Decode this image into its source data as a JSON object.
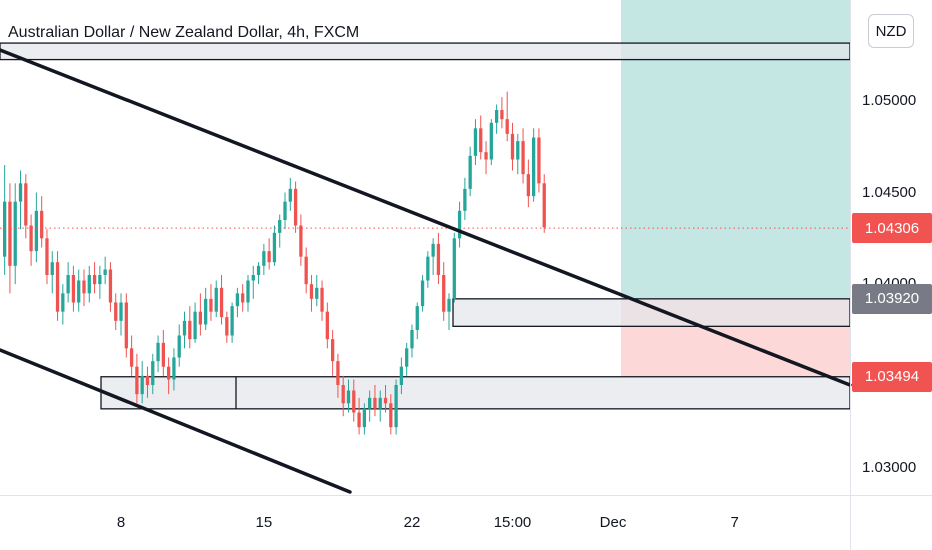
{
  "header": {
    "title": "Australian Dollar / New Zealand Dollar, 4h, FXCM",
    "currency": "NZD"
  },
  "chart_data": {
    "type": "candlestick",
    "ylim": [
      1.0285,
      1.0555
    ],
    "y_ticks": [
      {
        "value": 1.05,
        "label": "1.05000"
      },
      {
        "value": 1.045,
        "label": "1.04500"
      },
      {
        "value": 1.04,
        "label": "1.04000"
      },
      {
        "value": 1.03,
        "label": "1.03000"
      }
    ],
    "x_ticks": [
      {
        "bar": 22,
        "label": "8"
      },
      {
        "bar": 49,
        "label": "15"
      },
      {
        "bar": 77,
        "label": "22"
      },
      {
        "bar": 96,
        "label": "15:00"
      },
      {
        "bar": 115,
        "label": "Dec"
      },
      {
        "bar": 138,
        "label": "7"
      }
    ],
    "price_tags": [
      {
        "value": 1.04306,
        "label": "1.04306",
        "color": "#f05350"
      },
      {
        "value": 1.0392,
        "label": "1.03920",
        "color": "#787b86"
      },
      {
        "value": 1.03494,
        "label": "1.03494",
        "color": "#f05350"
      }
    ],
    "current_price": 1.04306,
    "colors": {
      "up": "#26a69a",
      "down": "#ef5350",
      "target": "#b2dfdb",
      "stop": "#fcd5d4",
      "zone": "#e4e6eb"
    },
    "candles": [
      [
        1.0415,
        1.0465,
        1.0405,
        1.0445
      ],
      [
        1.0445,
        1.0455,
        1.0395,
        1.041
      ],
      [
        1.041,
        1.0455,
        1.04,
        1.0445
      ],
      [
        1.0445,
        1.0462,
        1.043,
        1.0455
      ],
      [
        1.0455,
        1.046,
        1.0425,
        1.0432
      ],
      [
        1.0432,
        1.0438,
        1.041,
        1.0418
      ],
      [
        1.0418,
        1.045,
        1.0412,
        1.044
      ],
      [
        1.044,
        1.0448,
        1.042,
        1.0425
      ],
      [
        1.0425,
        1.043,
        1.04,
        1.0405
      ],
      [
        1.0405,
        1.0418,
        1.0395,
        1.0412
      ],
      [
        1.0412,
        1.0418,
        1.038,
        1.0385
      ],
      [
        1.0385,
        1.04,
        1.0378,
        1.0395
      ],
      [
        1.0395,
        1.0412,
        1.039,
        1.0405
      ],
      [
        1.0405,
        1.041,
        1.0385,
        1.039
      ],
      [
        1.039,
        1.0408,
        1.0385,
        1.0402
      ],
      [
        1.0402,
        1.0408,
        1.0388,
        1.0395
      ],
      [
        1.0395,
        1.041,
        1.039,
        1.0405
      ],
      [
        1.0405,
        1.0412,
        1.0395,
        1.04
      ],
      [
        1.04,
        1.041,
        1.0392,
        1.0405
      ],
      [
        1.0405,
        1.0415,
        1.04,
        1.0408
      ],
      [
        1.0408,
        1.0412,
        1.0385,
        1.039
      ],
      [
        1.039,
        1.0395,
        1.0375,
        1.038
      ],
      [
        1.038,
        1.0395,
        1.0372,
        1.039
      ],
      [
        1.039,
        1.0395,
        1.036,
        1.0365
      ],
      [
        1.0365,
        1.0372,
        1.035,
        1.0355
      ],
      [
        1.0355,
        1.0362,
        1.0335,
        1.034
      ],
      [
        1.034,
        1.0358,
        1.0335,
        1.035
      ],
      [
        1.035,
        1.0355,
        1.0338,
        1.0345
      ],
      [
        1.0345,
        1.0362,
        1.034,
        1.0358
      ],
      [
        1.0358,
        1.0372,
        1.0352,
        1.0368
      ],
      [
        1.0368,
        1.0375,
        1.035,
        1.0355
      ],
      [
        1.0355,
        1.036,
        1.034,
        1.0348
      ],
      [
        1.0348,
        1.0365,
        1.0342,
        1.036
      ],
      [
        1.036,
        1.0378,
        1.0355,
        1.0372
      ],
      [
        1.0372,
        1.0385,
        1.0365,
        1.038
      ],
      [
        1.038,
        1.0388,
        1.0365,
        1.037
      ],
      [
        1.037,
        1.039,
        1.0368,
        1.0385
      ],
      [
        1.0385,
        1.0395,
        1.0372,
        1.0378
      ],
      [
        1.0378,
        1.0398,
        1.0375,
        1.0392
      ],
      [
        1.0392,
        1.04,
        1.038,
        1.0385
      ],
      [
        1.0385,
        1.0402,
        1.0382,
        1.0398
      ],
      [
        1.0398,
        1.0405,
        1.0378,
        1.0382
      ],
      [
        1.0382,
        1.0385,
        1.0368,
        1.0372
      ],
      [
        1.0372,
        1.039,
        1.0368,
        1.0388
      ],
      [
        1.0388,
        1.0398,
        1.0382,
        1.0395
      ],
      [
        1.0395,
        1.04,
        1.0385,
        1.039
      ],
      [
        1.039,
        1.0405,
        1.0385,
        1.0402
      ],
      [
        1.0402,
        1.041,
        1.0392,
        1.0405
      ],
      [
        1.0405,
        1.0412,
        1.04,
        1.041
      ],
      [
        1.041,
        1.0422,
        1.0405,
        1.0418
      ],
      [
        1.0418,
        1.0425,
        1.0408,
        1.0412
      ],
      [
        1.0412,
        1.0432,
        1.041,
        1.0428
      ],
      [
        1.0428,
        1.0438,
        1.042,
        1.0435
      ],
      [
        1.0435,
        1.045,
        1.043,
        1.0445
      ],
      [
        1.0445,
        1.0458,
        1.044,
        1.0452
      ],
      [
        1.0452,
        1.0456,
        1.0428,
        1.0432
      ],
      [
        1.0432,
        1.0438,
        1.041,
        1.0415
      ],
      [
        1.0415,
        1.042,
        1.0395,
        1.04
      ],
      [
        1.04,
        1.0405,
        1.0385,
        1.0392
      ],
      [
        1.0392,
        1.0405,
        1.0388,
        1.0398
      ],
      [
        1.0398,
        1.0402,
        1.038,
        1.0385
      ],
      [
        1.0385,
        1.039,
        1.0365,
        1.037
      ],
      [
        1.037,
        1.0375,
        1.035,
        1.0358
      ],
      [
        1.0358,
        1.0362,
        1.0338,
        1.0345
      ],
      [
        1.0345,
        1.035,
        1.0328,
        1.0335
      ],
      [
        1.0335,
        1.0348,
        1.033,
        1.0342
      ],
      [
        1.0342,
        1.0348,
        1.0325,
        1.033
      ],
      [
        1.033,
        1.0338,
        1.0318,
        1.0322
      ],
      [
        1.0322,
        1.0335,
        1.0318,
        1.0332
      ],
      [
        1.0332,
        1.0342,
        1.0325,
        1.0338
      ],
      [
        1.0338,
        1.0345,
        1.0328,
        1.0332
      ],
      [
        1.0332,
        1.0342,
        1.0325,
        1.0338
      ],
      [
        1.0338,
        1.0345,
        1.033,
        1.0335
      ],
      [
        1.0335,
        1.034,
        1.0318,
        1.0322
      ],
      [
        1.0322,
        1.0348,
        1.0318,
        1.0345
      ],
      [
        1.0345,
        1.036,
        1.034,
        1.0355
      ],
      [
        1.0355,
        1.0368,
        1.035,
        1.0365
      ],
      [
        1.0365,
        1.0378,
        1.036,
        1.0375
      ],
      [
        1.0375,
        1.039,
        1.037,
        1.0388
      ],
      [
        1.0388,
        1.0405,
        1.0385,
        1.0402
      ],
      [
        1.0402,
        1.0418,
        1.0398,
        1.0415
      ],
      [
        1.0415,
        1.0425,
        1.0405,
        1.0422
      ],
      [
        1.0422,
        1.0428,
        1.04,
        1.0405
      ],
      [
        1.0405,
        1.0412,
        1.038,
        1.0385
      ],
      [
        1.0385,
        1.0395,
        1.0375,
        1.0392
      ],
      [
        1.0392,
        1.0428,
        1.039,
        1.0425
      ],
      [
        1.0425,
        1.0445,
        1.042,
        1.044
      ],
      [
        1.044,
        1.0458,
        1.0435,
        1.0452
      ],
      [
        1.0452,
        1.0475,
        1.0448,
        1.047
      ],
      [
        1.047,
        1.049,
        1.0465,
        1.0485
      ],
      [
        1.0485,
        1.0492,
        1.0468,
        1.0472
      ],
      [
        1.0472,
        1.0478,
        1.046,
        1.0468
      ],
      [
        1.0468,
        1.049,
        1.0465,
        1.0488
      ],
      [
        1.0488,
        1.0498,
        1.0482,
        1.0495
      ],
      [
        1.0495,
        1.0502,
        1.0485,
        1.049
      ],
      [
        1.049,
        1.0505,
        1.0478,
        1.0482
      ],
      [
        1.0482,
        1.0488,
        1.0462,
        1.0468
      ],
      [
        1.0468,
        1.0482,
        1.046,
        1.0478
      ],
      [
        1.0478,
        1.0485,
        1.0455,
        1.046
      ],
      [
        1.046,
        1.0468,
        1.0442,
        1.0448
      ],
      [
        1.0448,
        1.0485,
        1.0445,
        1.048
      ],
      [
        1.048,
        1.0485,
        1.045,
        1.0455
      ],
      [
        1.0455,
        1.046,
        1.0428,
        1.0431
      ]
    ]
  }
}
